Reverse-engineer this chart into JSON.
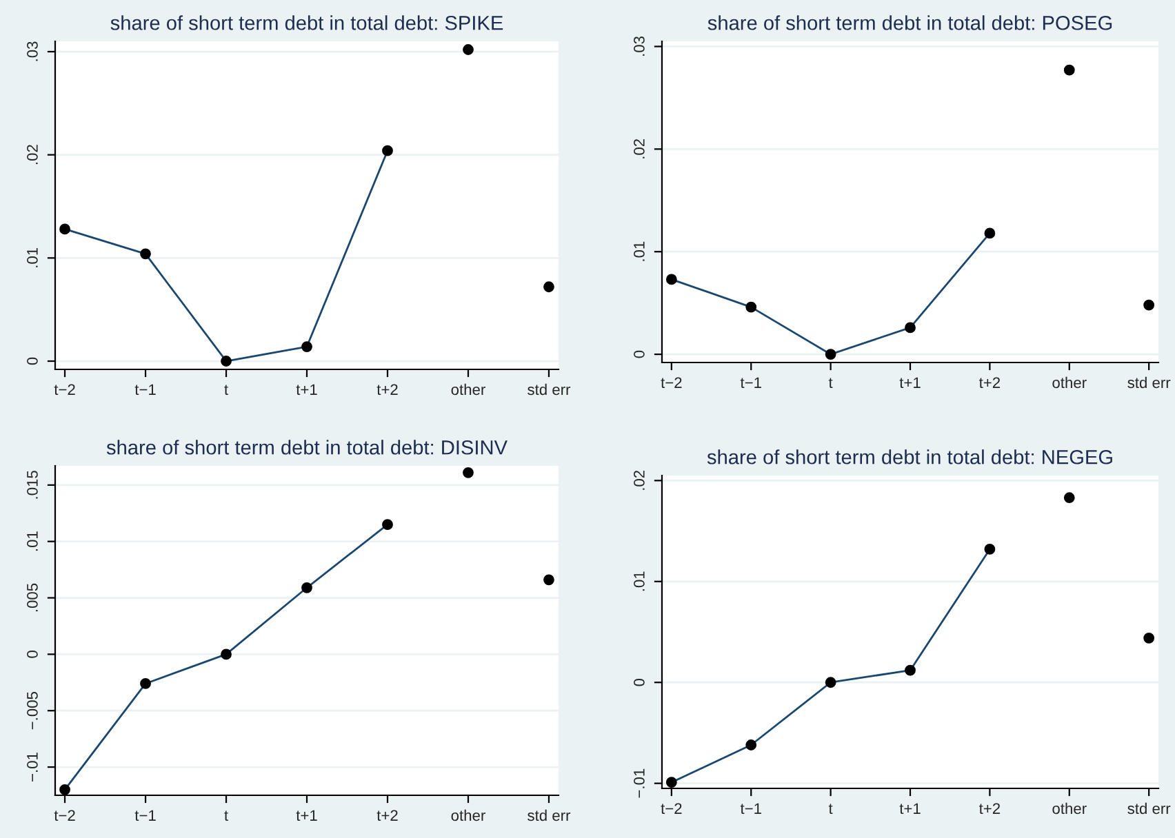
{
  "chart_data": [
    {
      "type": "line",
      "title": "share of short term debt in total debt: SPIKE",
      "categories": [
        "t−2",
        "t−1",
        "t",
        "t+1",
        "t+2",
        "other",
        "std err"
      ],
      "ylim": [
        -0.0008,
        0.031
      ],
      "yticks": [
        {
          "value": 0,
          "label": "0"
        },
        {
          "value": 0.01,
          "label": ".01"
        },
        {
          "value": 0.02,
          "label": ".02"
        },
        {
          "value": 0.03,
          "label": ".03"
        }
      ],
      "grid": "y",
      "legend": false,
      "series": [
        {
          "color": "#1a476f",
          "marker": "none",
          "values": [
            0.0128,
            0.0104,
            0,
            0.0014,
            0.0204,
            null,
            null
          ]
        },
        {
          "type": "scatter",
          "color": "#000000",
          "marker": "circle",
          "values": [
            0.0128,
            0.0104,
            0,
            0.0014,
            0.0204,
            0.0302,
            0.0072
          ]
        }
      ]
    },
    {
      "type": "line",
      "title": "share of short term debt in total debt: POSEG",
      "categories": [
        "t−2",
        "t−1",
        "t",
        "t+1",
        "t+2",
        "other",
        "std err"
      ],
      "ylim": [
        -0.0008,
        0.0305
      ],
      "yticks": [
        {
          "value": 0,
          "label": "0"
        },
        {
          "value": 0.01,
          "label": ".01"
        },
        {
          "value": 0.02,
          "label": ".02"
        },
        {
          "value": 0.03,
          "label": ".03"
        }
      ],
      "grid": "y",
      "legend": false,
      "series": [
        {
          "color": "#1a476f",
          "marker": "none",
          "values": [
            0.0073,
            0.0046,
            0,
            0.0026,
            0.0118,
            null,
            null
          ]
        },
        {
          "type": "scatter",
          "color": "#000000",
          "marker": "circle",
          "values": [
            0.0073,
            0.0046,
            0,
            0.0026,
            0.0118,
            0.0277,
            0.0048
          ]
        }
      ]
    },
    {
      "type": "line",
      "title": "share of short term debt in total debt: DISINV",
      "categories": [
        "t−2",
        "t−1",
        "t",
        "t+1",
        "t+2",
        "other",
        "std err"
      ],
      "ylim": [
        -0.0125,
        0.0167
      ],
      "yticks": [
        {
          "value": -0.01,
          "label": "−.01"
        },
        {
          "value": -0.005,
          "label": "−.005"
        },
        {
          "value": 0,
          "label": "0"
        },
        {
          "value": 0.005,
          "label": ".005"
        },
        {
          "value": 0.01,
          "label": ".01"
        },
        {
          "value": 0.015,
          "label": ".015"
        }
      ],
      "grid": "y",
      "legend": false,
      "series": [
        {
          "color": "#1a476f",
          "marker": "none",
          "values": [
            -0.012,
            -0.0026,
            0,
            0.0059,
            0.0115,
            null,
            null
          ]
        },
        {
          "type": "scatter",
          "color": "#000000",
          "marker": "circle",
          "values": [
            -0.012,
            -0.0026,
            0,
            0.0059,
            0.0115,
            0.0161,
            0.0066
          ]
        }
      ]
    },
    {
      "type": "line",
      "title": "share of short term debt in total debt: NEGEG",
      "categories": [
        "t−2",
        "t−1",
        "t",
        "t+1",
        "t+2",
        "other",
        "std err"
      ],
      "ylim": [
        -0.0105,
        0.0205
      ],
      "yticks": [
        {
          "value": -0.01,
          "label": "−.01"
        },
        {
          "value": 0,
          "label": "0"
        },
        {
          "value": 0.01,
          "label": ".01"
        },
        {
          "value": 0.02,
          "label": ".02"
        }
      ],
      "grid": "y",
      "legend": false,
      "series": [
        {
          "color": "#1a476f",
          "marker": "none",
          "values": [
            -0.0099,
            -0.0062,
            0,
            0.0012,
            0.0132,
            null,
            null
          ]
        },
        {
          "type": "scatter",
          "color": "#000000",
          "marker": "circle",
          "values": [
            -0.0099,
            -0.0062,
            0,
            0.0012,
            0.0132,
            0.0183,
            0.0044
          ]
        }
      ]
    }
  ]
}
